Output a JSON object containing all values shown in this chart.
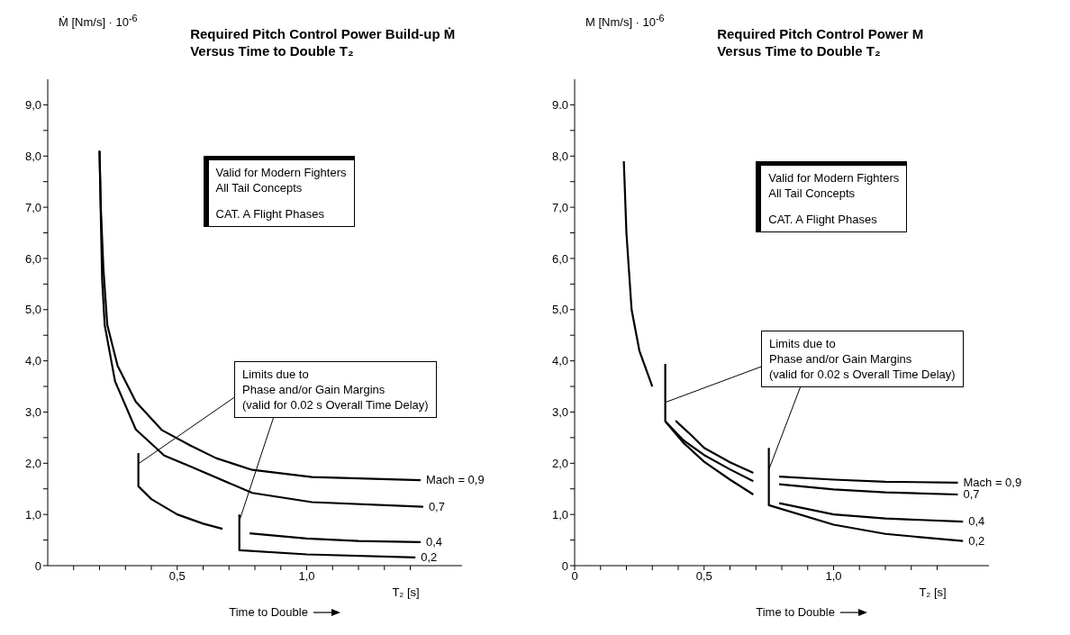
{
  "chart_data": [
    {
      "type": "line",
      "title": "Required Pitch Control Power Build-up Ṁ",
      "subtitle": "Versus Time to Double T₂",
      "ylabel": "Ṁ [Nm/s] · 10$^{-6}$",
      "xlabel": "Time to Double",
      "marker": "none",
      "line_style": "solid",
      "annotations": [
        "Valid for Modern Fighters",
        "All Tail Concepts",
        "CAT. A Flight Phases",
        "Limits due to",
        {
          "text": "Phase and/or Gain Margins",
          "x": 0.35,
          "y": 2.0
        },
        {
          "text": "(valid for 0.02 s Overall Time Delay)",
          "x": 0.74,
          "y": 0.9
        },
        "T₂ [s]"
      ],
      "xlim": [
        0,
        1.6
      ],
      "ylim": [
        0,
        9.5
      ],
      "xticks": [
        {
          "value": 0.1,
          "label": null
        },
        {
          "value": 0.2,
          "label": null
        },
        {
          "value": 0.3,
          "label": null
        },
        {
          "value": 0.4,
          "label": null
        },
        {
          "value": 0.5,
          "label": "0,5"
        },
        {
          "value": 0.6,
          "label": null
        },
        {
          "value": 0.7,
          "label": null
        },
        {
          "value": 0.8,
          "label": null
        },
        {
          "value": 0.9,
          "label": null
        },
        {
          "value": 1,
          "label": "1,0"
        },
        {
          "value": 1.1,
          "label": null
        },
        {
          "value": 1.2,
          "label": null
        },
        {
          "value": 1.3,
          "label": null
        },
        {
          "value": 1.4,
          "label": null
        }
      ],
      "yticks": [
        0,
        {
          "value": 0.5,
          "label": null
        },
        {
          "value": 1,
          "label": "1,0"
        },
        {
          "value": 1.5,
          "label": null
        },
        {
          "value": 2,
          "label": "2,0"
        },
        {
          "value": 2.5,
          "label": null
        },
        {
          "value": 3,
          "label": "3,0"
        },
        {
          "value": 3.5,
          "label": null
        },
        {
          "value": 4,
          "label": "4,0"
        },
        {
          "value": 4.5,
          "label": null
        },
        {
          "value": 5,
          "label": "5,0"
        },
        {
          "value": 5.5,
          "label": null
        },
        {
          "value": 6,
          "label": "6,0"
        },
        {
          "value": 6.5,
          "label": null
        },
        {
          "value": 7,
          "label": "7,0"
        },
        {
          "value": 7.5,
          "label": null
        },
        {
          "value": 8,
          "label": "8,0"
        },
        {
          "value": 8.5,
          "label": null
        },
        {
          "value": 9,
          "label": "9,0"
        }
      ],
      "series": [
        {
          "name": "Mach = 0,9",
          "color": "#000000",
          "x": [
            0.2,
            0.205,
            0.215,
            0.23,
            0.27,
            0.34,
            0.44,
            0.55,
            0.65,
            0.79,
            1.02,
            1.44
          ],
          "values": [
            8.1,
            7.0,
            5.8,
            4.7,
            3.9,
            3.2,
            2.65,
            2.35,
            2.1,
            1.87,
            1.73,
            1.67
          ]
        },
        {
          "name": "0,7",
          "color": "#000000",
          "x": [
            0.2,
            0.205,
            0.21,
            0.22,
            0.26,
            0.34,
            0.45,
            0.55,
            0.79,
            1.02,
            1.45
          ],
          "values": [
            8.1,
            6.8,
            5.6,
            4.7,
            3.6,
            2.66,
            2.15,
            1.94,
            1.42,
            1.24,
            1.15
          ]
        },
        {
          "color": "#000000",
          "x": [
            0.35,
            0.35,
            0.4,
            0.5,
            0.6,
            0.675
          ],
          "values": [
            2.2,
            1.55,
            1.3,
            1.0,
            0.82,
            0.72
          ]
        },
        {
          "name": "0,4",
          "color": "#000000",
          "x": [
            0.78,
            1.0,
            1.2,
            1.44
          ],
          "values": [
            0.63,
            0.53,
            0.48,
            0.46
          ]
        },
        {
          "name": "0,2",
          "color": "#000000",
          "x": [
            0.74,
            0.74,
            1.0,
            1.42
          ],
          "values": [
            1.0,
            0.3,
            0.22,
            0.16
          ]
        }
      ]
    },
    {
      "type": "line",
      "title": "Required Pitch Control Power M",
      "subtitle": "Versus Time to Double T₂",
      "ylabel": "M [Nm/s] · 10$^{-6}$",
      "xlabel": "Time to Double",
      "marker": "none",
      "line_style": "solid",
      "annotations": [
        "Valid for Modern Fighters",
        "All Tail Concepts",
        "CAT. A Flight Phases",
        "Limits due to",
        {
          "text": "Phase and/or Gain Margins",
          "x": 0.35,
          "y": 3.2
        },
        {
          "text": "(valid for 0.02 s Overall Time Delay)",
          "x": 0.75,
          "y": 1.9
        },
        "T₂ [s]"
      ],
      "xlim": [
        0,
        1.6
      ],
      "ylim": [
        0,
        9.5
      ],
      "xticks": [
        0,
        {
          "value": 0.1,
          "label": null
        },
        {
          "value": 0.2,
          "label": null
        },
        {
          "value": 0.3,
          "label": null
        },
        {
          "value": 0.4,
          "label": null
        },
        {
          "value": 0.5,
          "label": "0,5"
        },
        {
          "value": 0.6,
          "label": null
        },
        {
          "value": 0.7,
          "label": null
        },
        {
          "value": 0.8,
          "label": null
        },
        {
          "value": 0.9,
          "label": null
        },
        {
          "value": 1,
          "label": "1,0"
        },
        {
          "value": 1.1,
          "label": null
        },
        {
          "value": 1.2,
          "label": null
        },
        {
          "value": 1.3,
          "label": null
        },
        {
          "value": 1.4,
          "label": null
        }
      ],
      "yticks": [
        0,
        {
          "value": 0.5,
          "label": null
        },
        {
          "value": 1,
          "label": "1,0"
        },
        {
          "value": 1.5,
          "label": null
        },
        {
          "value": 2,
          "label": "2,0"
        },
        {
          "value": 2.5,
          "label": null
        },
        {
          "value": 3,
          "label": "3,0"
        },
        {
          "value": 3.5,
          "label": null
        },
        {
          "value": 4,
          "label": "4,0"
        },
        {
          "value": 4.5,
          "label": null
        },
        {
          "value": 5,
          "label": "5,0"
        },
        {
          "value": 5.5,
          "label": null
        },
        {
          "value": 6,
          "label": "6,0"
        },
        {
          "value": 6.5,
          "label": null
        },
        {
          "value": 7,
          "label": "7,0"
        },
        {
          "value": 7.5,
          "label": null
        },
        {
          "value": 8,
          "label": "8,0"
        },
        {
          "value": 8.5,
          "label": null
        },
        {
          "value": 9,
          "label": "9.0"
        }
      ],
      "series": [
        {
          "color": "#000000",
          "x": [
            0.19,
            0.2,
            0.22,
            0.25,
            0.3
          ],
          "values": [
            7.9,
            6.5,
            5.0,
            4.2,
            3.5
          ]
        },
        {
          "color": "#000000",
          "x": [
            0.35,
            0.35,
            0.42,
            0.5,
            0.6,
            0.69
          ],
          "values": [
            3.94,
            2.82,
            2.4,
            2.03,
            1.68,
            1.39
          ]
        },
        {
          "color": "#000000",
          "x": [
            0.35,
            0.42,
            0.5,
            0.6,
            0.69
          ],
          "values": [
            2.82,
            2.45,
            2.16,
            1.88,
            1.65
          ]
        },
        {
          "color": "#000000",
          "x": [
            0.39,
            0.45,
            0.5,
            0.6,
            0.69
          ],
          "values": [
            2.83,
            2.55,
            2.3,
            2.02,
            1.81
          ]
        },
        {
          "name": "Mach = 0,9",
          "color": "#000000",
          "x": [
            0.79,
            1.0,
            1.2,
            1.48
          ],
          "values": [
            1.74,
            1.68,
            1.64,
            1.62
          ]
        },
        {
          "name": "0,7",
          "color": "#000000",
          "x": [
            0.79,
            1.0,
            1.2,
            1.48
          ],
          "values": [
            1.59,
            1.49,
            1.43,
            1.39
          ]
        },
        {
          "name": "0,4",
          "color": "#000000",
          "x": [
            0.79,
            1.0,
            1.2,
            1.5
          ],
          "values": [
            1.22,
            1.0,
            0.92,
            0.86
          ]
        },
        {
          "name": "0,2",
          "color": "#000000",
          "x": [
            0.75,
            0.75,
            1.0,
            1.2,
            1.5
          ],
          "values": [
            2.3,
            1.18,
            0.8,
            0.62,
            0.48
          ]
        }
      ]
    }
  ]
}
